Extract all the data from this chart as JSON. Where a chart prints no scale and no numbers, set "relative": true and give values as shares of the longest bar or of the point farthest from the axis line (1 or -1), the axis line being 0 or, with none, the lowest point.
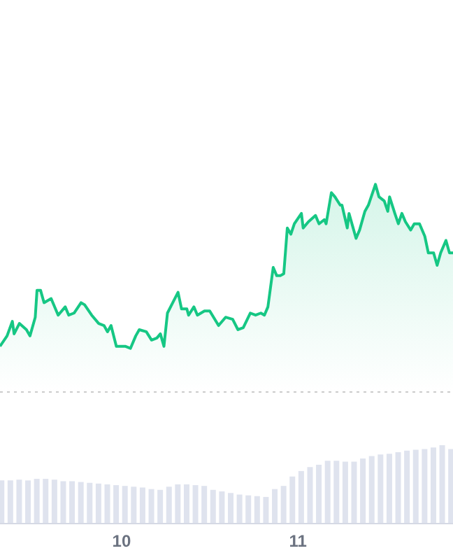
{
  "chart_data": [
    {
      "type": "area",
      "relative": true,
      "xlim": [
        9.31,
        11.88
      ],
      "series": [
        {
          "color": "#16c784",
          "x": [
            9.31,
            9.35,
            9.38,
            9.39,
            9.42,
            9.46,
            9.48,
            9.51,
            9.52,
            9.54,
            9.56,
            9.6,
            9.64,
            9.68,
            9.7,
            9.73,
            9.77,
            9.79,
            9.83,
            9.87,
            9.9,
            9.92,
            9.94,
            9.97,
            10.0,
            10.02,
            10.05,
            10.08,
            10.1,
            10.14,
            10.17,
            10.2,
            10.22,
            10.24,
            10.26,
            10.29,
            10.32,
            10.34,
            10.37,
            10.38,
            10.41,
            10.43,
            10.47,
            10.5,
            10.55,
            10.59,
            10.63,
            10.66,
            10.69,
            10.73,
            10.76,
            10.79,
            10.81,
            10.83,
            10.86,
            10.88,
            10.9,
            10.92,
            10.94,
            10.96,
            10.98,
            11.02,
            11.03,
            11.06,
            11.1,
            11.12,
            11.15,
            11.16,
            11.19,
            11.21,
            11.24,
            11.25,
            11.28,
            11.29,
            11.33,
            11.35,
            11.38,
            11.4,
            11.44,
            11.46,
            11.49,
            11.51,
            11.52,
            11.55,
            11.57,
            11.59,
            11.61,
            11.64,
            11.66,
            11.69,
            11.72,
            11.74,
            11.77,
            11.79,
            11.81,
            11.84,
            11.86,
            11.88
          ],
          "values": [
            0.22,
            0.27,
            0.34,
            0.28,
            0.33,
            0.3,
            0.27,
            0.36,
            0.49,
            0.49,
            0.43,
            0.45,
            0.37,
            0.41,
            0.37,
            0.38,
            0.43,
            0.42,
            0.37,
            0.33,
            0.32,
            0.29,
            0.32,
            0.22,
            0.22,
            0.22,
            0.21,
            0.27,
            0.3,
            0.29,
            0.25,
            0.26,
            0.28,
            0.22,
            0.38,
            0.43,
            0.48,
            0.4,
            0.4,
            0.37,
            0.41,
            0.37,
            0.39,
            0.39,
            0.32,
            0.36,
            0.35,
            0.3,
            0.31,
            0.38,
            0.37,
            0.38,
            0.37,
            0.41,
            0.6,
            0.56,
            0.56,
            0.57,
            0.79,
            0.76,
            0.81,
            0.86,
            0.79,
            0.82,
            0.85,
            0.81,
            0.83,
            0.81,
            0.96,
            0.94,
            0.9,
            0.9,
            0.79,
            0.86,
            0.74,
            0.78,
            0.87,
            0.9,
            1,
            0.94,
            0.92,
            0.87,
            0.94,
            0.86,
            0.81,
            0.86,
            0.82,
            0.78,
            0.81,
            0.81,
            0.75,
            0.67,
            0.67,
            0.61,
            0.67,
            0.73,
            0.67,
            0.67
          ]
        }
      ],
      "ref_lines": [
        {
          "axis": "y",
          "value": 0,
          "color": "#cccccc",
          "line_style": "dotted"
        }
      ]
    },
    {
      "type": "bar",
      "relative": true,
      "xlim": [
        9.31,
        11.88
      ],
      "xticks": [
        10,
        11
      ],
      "series": [
        {
          "color": "#dfe3ee",
          "x": [
            9.32,
            9.37,
            9.42,
            9.47,
            9.52,
            9.57,
            9.62,
            9.67,
            9.72,
            9.77,
            9.82,
            9.87,
            9.92,
            9.97,
            10.02,
            10.07,
            10.12,
            10.17,
            10.22,
            10.27,
            10.32,
            10.37,
            10.42,
            10.47,
            10.52,
            10.57,
            10.62,
            10.67,
            10.72,
            10.77,
            10.82,
            10.87,
            10.92,
            10.97,
            11.02,
            11.07,
            11.12,
            11.17,
            11.22,
            11.27,
            11.32,
            11.37,
            11.42,
            11.47,
            11.52,
            11.57,
            11.62,
            11.67,
            11.72,
            11.77,
            11.82,
            11.87
          ],
          "values": [
            0.55,
            0.55,
            0.56,
            0.55,
            0.57,
            0.57,
            0.56,
            0.54,
            0.54,
            0.53,
            0.52,
            0.51,
            0.5,
            0.49,
            0.48,
            0.47,
            0.46,
            0.44,
            0.43,
            0.47,
            0.5,
            0.5,
            0.49,
            0.48,
            0.43,
            0.41,
            0.39,
            0.37,
            0.36,
            0.35,
            0.34,
            0.44,
            0.48,
            0.6,
            0.67,
            0.72,
            0.75,
            0.8,
            0.8,
            0.79,
            0.79,
            0.83,
            0.86,
            0.88,
            0.89,
            0.91,
            0.93,
            0.94,
            0.95,
            0.97,
            1,
            0.95
          ]
        }
      ]
    }
  ]
}
